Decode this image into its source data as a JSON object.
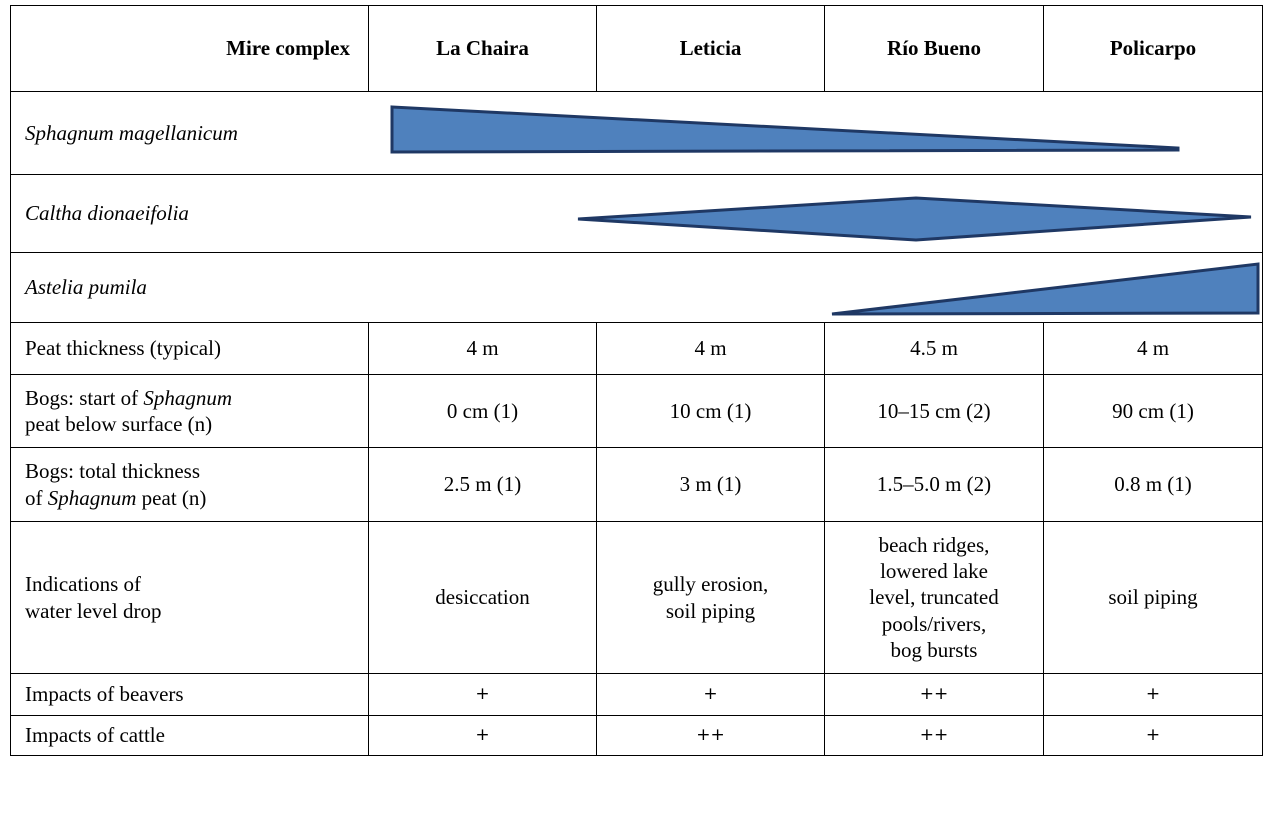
{
  "header": {
    "first": "Mire complex",
    "sites": [
      "La Chaira",
      "Leticia",
      "Río Bueno",
      "Policarpo"
    ]
  },
  "species": [
    {
      "name": "Sphagnum magellanicum",
      "shape": "decreasing-wedge"
    },
    {
      "name": "Caltha dionaeifolia",
      "shape": "diamond-peak-Río Bueno"
    },
    {
      "name": "Astelia pumila",
      "shape": "increasing-wedge"
    }
  ],
  "rows": {
    "peat_thickness": {
      "label": "Peat thickness (typical)",
      "values": [
        "4 m",
        "4 m",
        "4.5 m",
        "4 m"
      ]
    },
    "start_sphagnum": {
      "label_pre": "Bogs: start of ",
      "label_em": "Sphagnum",
      "label_post": "peat below surface (n)",
      "values": [
        "0 cm (1)",
        "10 cm (1)",
        "10–15 cm (2)",
        "90 cm (1)"
      ]
    },
    "total_sphagnum": {
      "label_line1": "Bogs: total thickness",
      "label_pre": "of ",
      "label_em": "Sphagnum",
      "label_post": " peat (n)",
      "values": [
        "2.5 m (1)",
        "3 m (1)",
        "1.5–5.0 m (2)",
        "0.8 m (1)"
      ]
    },
    "water_level": {
      "label_line1": "Indications of",
      "label_line2": "water level drop",
      "values": [
        [
          "desiccation"
        ],
        [
          "gully erosion,",
          "soil piping"
        ],
        [
          "beach ridges,",
          "lowered lake",
          "level, truncated",
          "pools/rivers,",
          "bog bursts"
        ],
        [
          "soil piping"
        ]
      ]
    },
    "beavers": {
      "label": "Impacts of beavers",
      "values": [
        "+",
        "+",
        "++",
        "+"
      ]
    },
    "cattle": {
      "label": "Impacts of cattle",
      "values": [
        "+",
        "++",
        "++",
        "+"
      ]
    }
  },
  "colors": {
    "shape_fill": "#4F81BD",
    "shape_stroke": "#1F3864"
  }
}
